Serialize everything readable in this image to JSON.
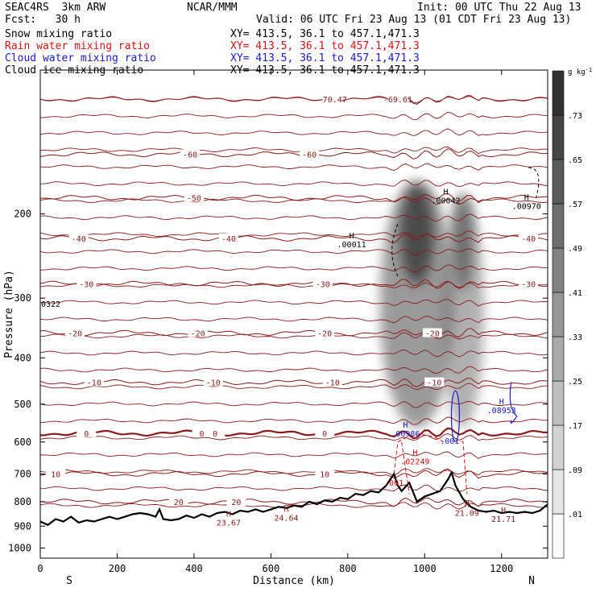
{
  "header": {
    "model": "SEAC4RS  3km ARW",
    "org": "NCAR/MMM",
    "init": "Init: 00 UTC Thu 22 Aug 13",
    "fcst": "Fcst:   30 h",
    "valid": "Valid: 06 UTC Fri 23 Aug 13 (01 CDT Fri 23 Aug 13)"
  },
  "fields": [
    {
      "name": "Snow mixing ratio",
      "xy": "XY= 413.5, 36.1 to 457.1,471.3",
      "color": "#000000"
    },
    {
      "name": "Rain water mixing ratio",
      "xy": "XY= 413.5, 36.1 to 457.1,471.3",
      "color": "#e01010"
    },
    {
      "name": "Cloud water mixing ratio",
      "xy": "XY= 413.5, 36.1 to 457.1,471.3",
      "color": "#1a1acc"
    },
    {
      "name": "Cloud ice mixing ratio",
      "xy": "XY= 413.5, 36.1 to 457.1,471.3",
      "color": "#000000"
    }
  ],
  "colors": {
    "temperature_contour": "#8b1a1a",
    "terrain": "#000000",
    "rain": "#e01010",
    "cloud_water": "#1a1acc",
    "cloud_ice": "#000000"
  },
  "chart_data": {
    "type": "heatmap",
    "xlabel": "Distance (km)",
    "ylabel": "Pressure (hPa)",
    "xlim": [
      0,
      1320
    ],
    "ylim": [
      1050,
      100
    ],
    "y_scale": "log",
    "x_ticks": [
      0,
      200,
      400,
      600,
      800,
      1000,
      1200
    ],
    "y_ticks": [
      200,
      300,
      400,
      500,
      600,
      700,
      800,
      900,
      1000
    ],
    "endpoint_labels": {
      "left": "S",
      "right": "N"
    },
    "colorbar": {
      "unit": "g kg",
      "unit_exp": "-1",
      "ticks": [
        ".01",
        ".09",
        ".17",
        ".25",
        ".33",
        ".41",
        ".49",
        ".57",
        ".65",
        ".73"
      ]
    },
    "temperature_contours": [
      {
        "value": -70,
        "p": 115,
        "labels": [
          {
            "text": "-70.47",
            "x": 760
          },
          {
            "text": "-69.61",
            "x": 930
          }
        ]
      },
      {
        "value": -60,
        "p": 150,
        "labels": [
          {
            "text": "-60",
            "x": 390
          },
          {
            "text": "-60",
            "x": 700
          }
        ]
      },
      {
        "value": -50,
        "p": 185,
        "labels": [
          {
            "text": "-50",
            "x": 400
          }
        ]
      },
      {
        "value": -40,
        "p": 225,
        "labels": [
          {
            "text": "-40",
            "x": 100
          },
          {
            "text": "-40",
            "x": 490
          },
          {
            "text": "-40",
            "x": 1270
          }
        ]
      },
      {
        "value": -30,
        "p": 280,
        "labels": [
          {
            "text": "-30",
            "x": 120
          },
          {
            "text": "-30",
            "x": 735
          },
          {
            "text": "-30",
            "x": 1270
          }
        ]
      },
      {
        "value": -20,
        "p": 355,
        "labels": [
          {
            "text": "-20",
            "x": 90
          },
          {
            "text": "-20",
            "x": 410
          },
          {
            "text": "-20",
            "x": 740
          },
          {
            "text": "-20",
            "x": 1020
          }
        ]
      },
      {
        "value": -10,
        "p": 450,
        "labels": [
          {
            "text": "-10",
            "x": 140
          },
          {
            "text": "-10",
            "x": 450
          },
          {
            "text": "-10",
            "x": 760
          },
          {
            "text": "-10",
            "x": 1025
          }
        ]
      },
      {
        "value": 0,
        "p": 575,
        "labels": [
          {
            "text": "0",
            "x": 120
          },
          {
            "text": "0",
            "x": 420
          },
          {
            "text": "0",
            "x": 455
          },
          {
            "text": "0",
            "x": 740
          }
        ]
      },
      {
        "value": 10,
        "p": 700,
        "labels": [
          {
            "text": "10",
            "x": 40
          },
          {
            "text": "10",
            "x": 740
          }
        ]
      },
      {
        "value": 20,
        "p": 800,
        "labels": [
          {
            "text": "20",
            "x": 360
          },
          {
            "text": "20",
            "x": 510
          }
        ]
      }
    ],
    "annotations": [
      {
        "text": "H",
        "sub": ".00042",
        "x": 1055,
        "p": 182,
        "color": "#000000"
      },
      {
        "text": "H",
        "sub": ".00970",
        "x": 1265,
        "p": 187,
        "color": "#000000"
      },
      {
        "text": "H",
        "sub": ".00011",
        "x": 810,
        "p": 225,
        "color": "#000000"
      },
      {
        "text": "H",
        "sub": ".08953",
        "x": 1200,
        "p": 500,
        "color": "#1a1acc"
      },
      {
        "text": "H",
        "sub": ".00986",
        "x": 950,
        "p": 560,
        "color": "#1a1acc"
      },
      {
        "text": "",
        "sub": ".001",
        "x": 1065,
        "p": 580,
        "color": "#1a1acc"
      },
      {
        "text": "H",
        "sub": ".02249",
        "x": 975,
        "p": 640,
        "color": "#e01010"
      },
      {
        "text": "",
        "sub": ".001",
        "x": 920,
        "p": 710,
        "color": "#e01010"
      },
      {
        "text": "H",
        "sub": "21.09",
        "x": 1110,
        "p": 820,
        "color": "#8b1a1a"
      },
      {
        "text": "H",
        "sub": "21.71",
        "x": 1205,
        "p": 845,
        "color": "#8b1a1a"
      },
      {
        "text": "H",
        "sub": "23.67",
        "x": 490,
        "p": 860,
        "color": "#8b1a1a"
      },
      {
        "text": "H",
        "sub": "24.64",
        "x": 640,
        "p": 840,
        "color": "#8b1a1a"
      },
      {
        "text": "",
        "sub": "0322",
        "x": 0,
        "p": 300,
        "color": "#000000"
      }
    ],
    "snow_columns": [
      {
        "x": 980,
        "p_top": 170,
        "p_bottom": 560,
        "max": 0.73
      },
      {
        "x": 1100,
        "p_top": 180,
        "p_bottom": 560,
        "max": 0.57
      }
    ],
    "terrain_p": [
      [
        0,
        880
      ],
      [
        20,
        895
      ],
      [
        40,
        870
      ],
      [
        60,
        880
      ],
      [
        80,
        860
      ],
      [
        100,
        885
      ],
      [
        120,
        875
      ],
      [
        140,
        880
      ],
      [
        160,
        870
      ],
      [
        180,
        860
      ],
      [
        200,
        870
      ],
      [
        220,
        860
      ],
      [
        240,
        850
      ],
      [
        260,
        845
      ],
      [
        280,
        850
      ],
      [
        300,
        860
      ],
      [
        310,
        830
      ],
      [
        320,
        870
      ],
      [
        340,
        875
      ],
      [
        360,
        870
      ],
      [
        380,
        855
      ],
      [
        400,
        865
      ],
      [
        420,
        850
      ],
      [
        440,
        860
      ],
      [
        460,
        845
      ],
      [
        480,
        840
      ],
      [
        500,
        850
      ],
      [
        520,
        835
      ],
      [
        540,
        840
      ],
      [
        560,
        830
      ],
      [
        580,
        840
      ],
      [
        600,
        830
      ],
      [
        620,
        820
      ],
      [
        640,
        825
      ],
      [
        660,
        815
      ],
      [
        680,
        820
      ],
      [
        700,
        800
      ],
      [
        720,
        810
      ],
      [
        740,
        795
      ],
      [
        760,
        800
      ],
      [
        780,
        785
      ],
      [
        800,
        790
      ],
      [
        820,
        770
      ],
      [
        840,
        775
      ],
      [
        860,
        760
      ],
      [
        880,
        765
      ],
      [
        900,
        740
      ],
      [
        920,
        700
      ],
      [
        930,
        740
      ],
      [
        940,
        760
      ],
      [
        960,
        730
      ],
      [
        980,
        800
      ],
      [
        990,
        790
      ],
      [
        1000,
        780
      ],
      [
        1020,
        770
      ],
      [
        1040,
        760
      ],
      [
        1060,
        720
      ],
      [
        1070,
        695
      ],
      [
        1080,
        740
      ],
      [
        1100,
        790
      ],
      [
        1120,
        820
      ],
      [
        1140,
        835
      ],
      [
        1160,
        840
      ],
      [
        1180,
        835
      ],
      [
        1200,
        845
      ],
      [
        1220,
        840
      ],
      [
        1240,
        845
      ],
      [
        1260,
        840
      ],
      [
        1280,
        845
      ],
      [
        1300,
        835
      ],
      [
        1320,
        810
      ]
    ]
  }
}
